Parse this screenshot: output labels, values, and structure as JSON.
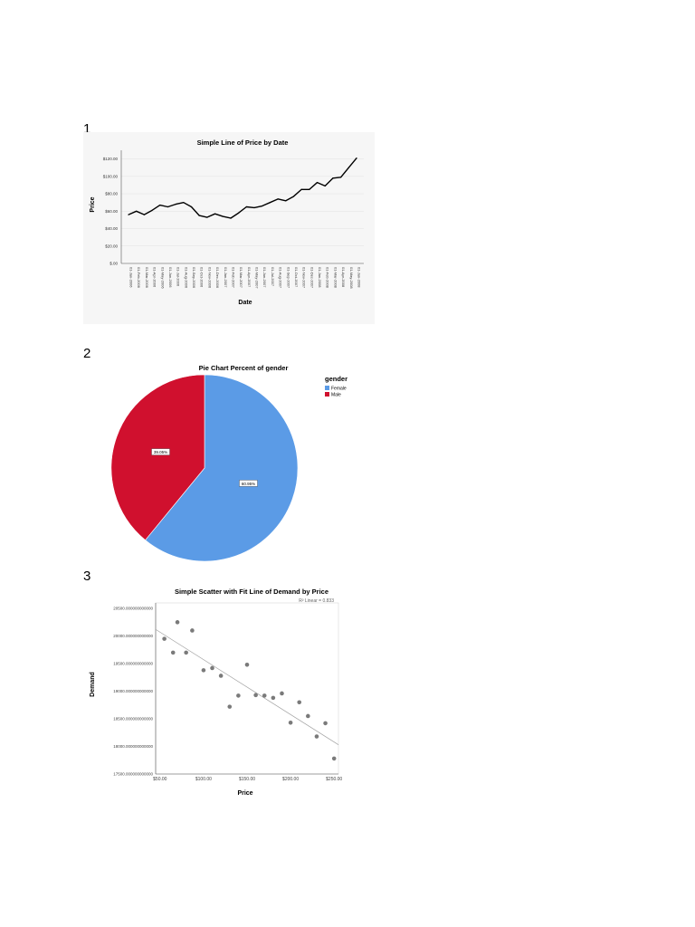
{
  "figure_numbers": [
    "1",
    "2",
    "3"
  ],
  "colors": {
    "female": "#5b9be6",
    "male": "#d0102e",
    "line": "#000000",
    "scatter_point": "#7a7a7a",
    "fit_line": "#a0a0a0",
    "panel_bg": "#f6f6f6"
  },
  "chart_data": [
    {
      "type": "line",
      "title": "Simple Line of  Price by Date",
      "xlabel": "Date",
      "ylabel": "Price",
      "ylim": [
        0,
        130
      ],
      "yticks": [
        0,
        20,
        40,
        60,
        80,
        100,
        120
      ],
      "ytick_labels": [
        "$.00",
        "$20.00",
        "$40.00",
        "$60.00",
        "$80.00",
        "$100.00",
        "$120.00"
      ],
      "categories": [
        "01-Jan-2006",
        "01-Feb-2006",
        "01-Mar-2006",
        "01-Apr-2006",
        "01-May-2006",
        "01-Jun-2006",
        "01-Jul-2006",
        "01-Aug-2006",
        "01-Sep-2006",
        "01-Oct-2006",
        "01-Nov-2006",
        "01-Dec-2006",
        "01-Jan-2007",
        "01-Feb-2007",
        "01-Mar-2007",
        "01-Apr-2007",
        "01-May-2007",
        "01-Jun-2007",
        "01-Jul-2007",
        "01-Aug-2007",
        "01-Sep-2007",
        "01-Oct-2007",
        "01-Nov-2007",
        "01-Dec-2007",
        "01-Jan-2008",
        "01-Feb-2008",
        "01-Mar-2008",
        "01-Apr-2008",
        "01-May-2008",
        "01-Jun-2008"
      ],
      "values": [
        56,
        60,
        56,
        61,
        67,
        65,
        68,
        70,
        65,
        55,
        53,
        57,
        54,
        52,
        58,
        65,
        64,
        66,
        70,
        74,
        72,
        77,
        85,
        85,
        93,
        89,
        98,
        99,
        110,
        121
      ]
    },
    {
      "type": "pie",
      "title": "Pie Chart Percent of gender",
      "legend_title": "gender",
      "legend_position": "top-right",
      "labels": [
        "Female",
        "Male"
      ],
      "values": [
        60.95,
        39.05
      ],
      "value_labels": [
        "60.95%",
        "39.05%"
      ]
    },
    {
      "type": "scatter",
      "title": "Simple Scatter with Fit Line of Demand by Price",
      "xlabel": "Price",
      "ylabel": "Demand",
      "fit_label": "R² Linear = 0.833",
      "xlim": [
        45,
        255
      ],
      "ylim": [
        17500,
        20600
      ],
      "xticks": [
        50,
        100,
        150,
        200,
        250
      ],
      "xtick_labels": [
        "$50.00",
        "$100.00",
        "$150.00",
        "$200.00",
        "$250.00"
      ],
      "yticks": [
        17500,
        18000,
        18500,
        19000,
        19500,
        20000,
        20500
      ],
      "ytick_labels": [
        "17500.000000000000",
        "18000.000000000000",
        "18500.000000000000",
        "19000.000000000000",
        "19500.000000000000",
        "20000.000000000000",
        "20500.000000000000"
      ],
      "x": [
        55,
        65,
        70,
        80,
        87,
        100,
        110,
        120,
        130,
        140,
        150,
        160,
        170,
        180,
        190,
        200,
        210,
        220,
        230,
        240,
        250
      ],
      "y": [
        19950,
        19700,
        20250,
        19700,
        20100,
        19380,
        19420,
        19280,
        18720,
        18920,
        19480,
        18930,
        18920,
        18880,
        18960,
        18430,
        18800,
        18550,
        18180,
        18420,
        17780
      ],
      "fit_line": {
        "x": [
          45,
          255
        ],
        "y": [
          20120,
          18030
        ]
      }
    }
  ]
}
